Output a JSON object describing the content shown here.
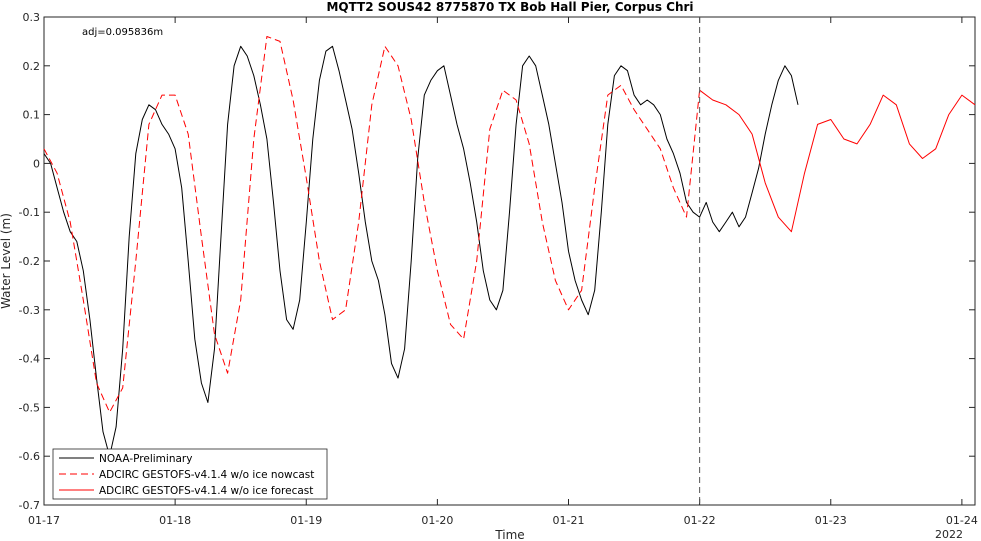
{
  "chart_data": {
    "type": "line",
    "title": "MQTT2 SOUS42 8775870 TX Bob Hall Pier, Corpus Chri",
    "xlabel": "Time",
    "ylabel": "Water Level (m)",
    "annotation": "adj=0.095836m",
    "year_label": "2022",
    "x_unit": "days",
    "xlim": [
      0,
      7.1
    ],
    "ylim": [
      -0.7,
      0.3
    ],
    "x_ticks": [
      0,
      1,
      2,
      3,
      4,
      5,
      6,
      7
    ],
    "x_tick_labels": [
      "01-17",
      "01-18",
      "01-19",
      "01-20",
      "01-21",
      "01-22",
      "01-23",
      "01-24"
    ],
    "y_ticks": [
      -0.7,
      -0.6,
      -0.5,
      -0.4,
      -0.3,
      -0.2,
      -0.1,
      0,
      0.1,
      0.2,
      0.3
    ],
    "y_tick_labels": [
      "-0.7",
      "-0.6",
      "-0.5",
      "-0.4",
      "-0.3",
      "-0.2",
      "-0.1",
      "0",
      "0.1",
      "0.2",
      "0.3"
    ],
    "nowcast_end": 5,
    "legend_position": "bottom-left",
    "grid": false,
    "series": [
      {
        "name": "NOAA-Preliminary",
        "color": "#000000",
        "style": "solid",
        "x": [
          0,
          0.05,
          0.1,
          0.15,
          0.2,
          0.25,
          0.3,
          0.35,
          0.4,
          0.45,
          0.5,
          0.55,
          0.6,
          0.65,
          0.7,
          0.75,
          0.8,
          0.85,
          0.9,
          0.95,
          1.0,
          1.05,
          1.1,
          1.15,
          1.2,
          1.25,
          1.3,
          1.35,
          1.4,
          1.45,
          1.5,
          1.55,
          1.6,
          1.65,
          1.7,
          1.75,
          1.8,
          1.85,
          1.9,
          1.95,
          2.0,
          2.05,
          2.1,
          2.15,
          2.2,
          2.25,
          2.3,
          2.35,
          2.4,
          2.45,
          2.5,
          2.55,
          2.6,
          2.65,
          2.7,
          2.75,
          2.8,
          2.85,
          2.9,
          2.95,
          3.0,
          3.05,
          3.1,
          3.15,
          3.2,
          3.25,
          3.3,
          3.35,
          3.4,
          3.45,
          3.5,
          3.55,
          3.6,
          3.65,
          3.7,
          3.75,
          3.8,
          3.85,
          3.9,
          3.95,
          4.0,
          4.05,
          4.1,
          4.15,
          4.2,
          4.25,
          4.3,
          4.35,
          4.4,
          4.45,
          4.5,
          4.55,
          4.6,
          4.65,
          4.7,
          4.75,
          4.8,
          4.85,
          4.9,
          4.95,
          5.0,
          5.05,
          5.1,
          5.15,
          5.2,
          5.25,
          5.3,
          5.35,
          5.4,
          5.45,
          5.5,
          5.55,
          5.6,
          5.65,
          5.7,
          5.75
        ],
        "y": [
          0.02,
          0.0,
          -0.05,
          -0.1,
          -0.14,
          -0.16,
          -0.22,
          -0.32,
          -0.44,
          -0.55,
          -0.6,
          -0.54,
          -0.38,
          -0.15,
          0.02,
          0.09,
          0.12,
          0.11,
          0.08,
          0.06,
          0.03,
          -0.05,
          -0.2,
          -0.36,
          -0.45,
          -0.49,
          -0.38,
          -0.15,
          0.08,
          0.2,
          0.24,
          0.22,
          0.18,
          0.12,
          0.05,
          -0.08,
          -0.22,
          -0.32,
          -0.34,
          -0.28,
          -0.12,
          0.05,
          0.17,
          0.23,
          0.24,
          0.19,
          0.13,
          0.07,
          -0.02,
          -0.12,
          -0.2,
          -0.24,
          -0.31,
          -0.41,
          -0.44,
          -0.38,
          -0.2,
          0.01,
          0.14,
          0.17,
          0.19,
          0.2,
          0.14,
          0.08,
          0.03,
          -0.04,
          -0.12,
          -0.22,
          -0.28,
          -0.3,
          -0.26,
          -0.1,
          0.08,
          0.2,
          0.22,
          0.2,
          0.14,
          0.08,
          0.0,
          -0.08,
          -0.18,
          -0.24,
          -0.28,
          -0.31,
          -0.26,
          -0.1,
          0.08,
          0.18,
          0.2,
          0.19,
          0.14,
          0.12,
          0.13,
          0.12,
          0.1,
          0.05,
          0.02,
          -0.02,
          -0.08,
          -0.1,
          -0.11,
          -0.08,
          -0.12,
          -0.14,
          -0.12,
          -0.1,
          -0.13,
          -0.11,
          -0.06,
          -0.01,
          0.06,
          0.12,
          0.17,
          0.2,
          0.18,
          0.12
        ]
      },
      {
        "name": "ADCIRC GESTOFS-v4.1.4 w/o ice nowcast",
        "color": "#ff0000",
        "style": "dashed",
        "x": [
          0,
          0.1,
          0.2,
          0.3,
          0.4,
          0.5,
          0.6,
          0.7,
          0.8,
          0.9,
          1.0,
          1.1,
          1.2,
          1.3,
          1.4,
          1.5,
          1.6,
          1.7,
          1.8,
          1.9,
          2.0,
          2.1,
          2.2,
          2.3,
          2.4,
          2.5,
          2.6,
          2.7,
          2.8,
          2.9,
          3.0,
          3.1,
          3.2,
          3.3,
          3.4,
          3.5,
          3.6,
          3.7,
          3.8,
          3.9,
          4.0,
          4.1,
          4.2,
          4.3,
          4.4,
          4.5,
          4.6,
          4.7,
          4.8,
          4.9,
          5.0
        ],
        "y": [
          0.03,
          -0.02,
          -0.12,
          -0.28,
          -0.45,
          -0.51,
          -0.46,
          -0.2,
          0.08,
          0.14,
          0.14,
          0.06,
          -0.15,
          -0.35,
          -0.43,
          -0.28,
          0.05,
          0.26,
          0.25,
          0.13,
          -0.03,
          -0.2,
          -0.32,
          -0.3,
          -0.12,
          0.12,
          0.24,
          0.2,
          0.09,
          -0.08,
          -0.22,
          -0.33,
          -0.36,
          -0.2,
          0.07,
          0.15,
          0.13,
          0.04,
          -0.12,
          -0.24,
          -0.3,
          -0.26,
          -0.05,
          0.14,
          0.16,
          0.11,
          0.07,
          0.03,
          -0.05,
          -0.11,
          0.15
        ]
      },
      {
        "name": "ADCIRC GESTOFS-v4.1.4 w/o ice forecast",
        "color": "#ff0000",
        "style": "solid",
        "x": [
          5.0,
          5.1,
          5.2,
          5.3,
          5.4,
          5.5,
          5.6,
          5.7,
          5.8,
          5.9,
          6.0,
          6.1,
          6.2,
          6.3,
          6.4,
          6.5,
          6.6,
          6.7,
          6.8,
          6.9,
          7.0,
          7.1
        ],
        "y": [
          0.15,
          0.13,
          0.12,
          0.1,
          0.06,
          -0.04,
          -0.11,
          -0.14,
          -0.02,
          0.08,
          0.09,
          0.05,
          0.04,
          0.08,
          0.14,
          0.12,
          0.04,
          0.01,
          0.03,
          0.1,
          0.14,
          0.12
        ]
      }
    ]
  }
}
